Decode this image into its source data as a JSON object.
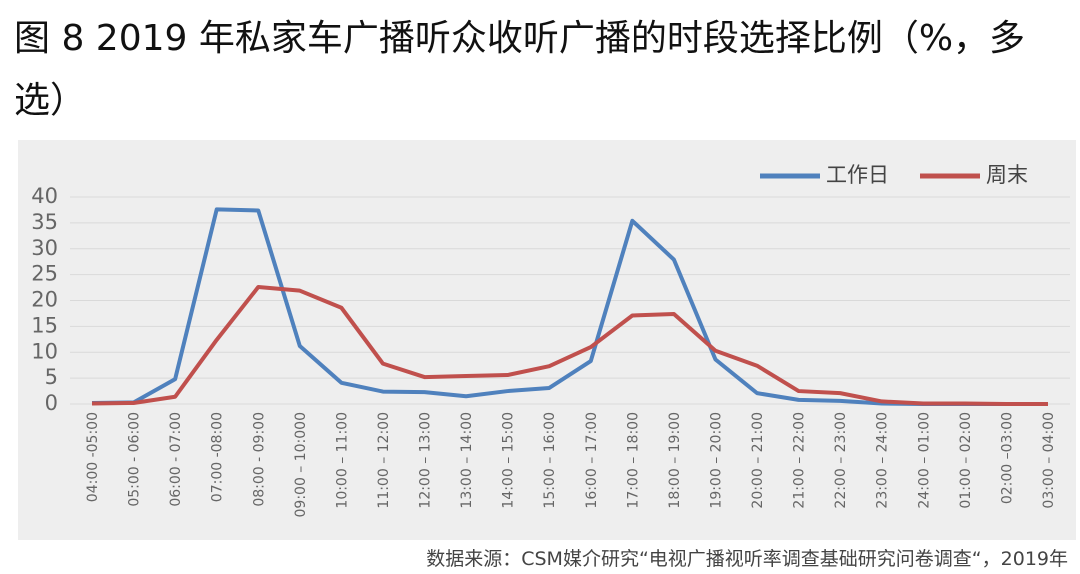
{
  "chart_data": {
    "type": "line",
    "title": "图 8 2019 年私家车广播听众收听广播的时段选择比例（%，多选）",
    "source": "数据来源：CSM媒介研究“电视广播视听率调查基础研究问卷调查“，2019年",
    "categories": [
      "04:00 -05:00",
      "05:00 - 06:00",
      "06:00 - 07:00",
      "07:00 -08:00",
      "08:00 - 09:00",
      "09:00 – 10:000",
      "10:00 – 11:00",
      "11:00 – 12:00",
      "12:00 – 13:00",
      "13:00 – 14:00",
      "14:00 – 15:00",
      "15:00 – 16:00",
      "16:00 – 17:00",
      "17:00 – 18:00",
      "18:00 – 19:00",
      "19:00 – 20:00",
      "20:00 – 21:00",
      "21:00 – 22:00",
      "22:00 – 23:00",
      "23:00 – 24:00",
      "24:00 – 01:00",
      "01:00 – 02:00",
      "02:00 –03:00",
      "03:00 – 04:00"
    ],
    "series": [
      {
        "name": "工作日",
        "color": "#4f81bd",
        "values": [
          0.2,
          0.3,
          4.8,
          37.6,
          37.4,
          11.2,
          4.1,
          2.4,
          2.3,
          1.5,
          2.5,
          3.1,
          8.3,
          35.4,
          27.9,
          8.6,
          2.1,
          0.8,
          0.6,
          0.1,
          0,
          0,
          0,
          0
        ]
      },
      {
        "name": "周末",
        "color": "#c0504d",
        "values": [
          0.1,
          0.2,
          1.4,
          12.4,
          22.6,
          21.9,
          18.6,
          7.8,
          5.2,
          5.4,
          5.6,
          7.3,
          11.0,
          17.1,
          17.4,
          10.3,
          7.4,
          2.5,
          2.1,
          0.5,
          0.1,
          0.1,
          0,
          0
        ]
      }
    ],
    "ylim": [
      0,
      40
    ],
    "yticks": [
      0,
      5,
      10,
      15,
      20,
      25,
      30,
      35,
      40
    ],
    "grid": true,
    "legend": "top-right"
  }
}
